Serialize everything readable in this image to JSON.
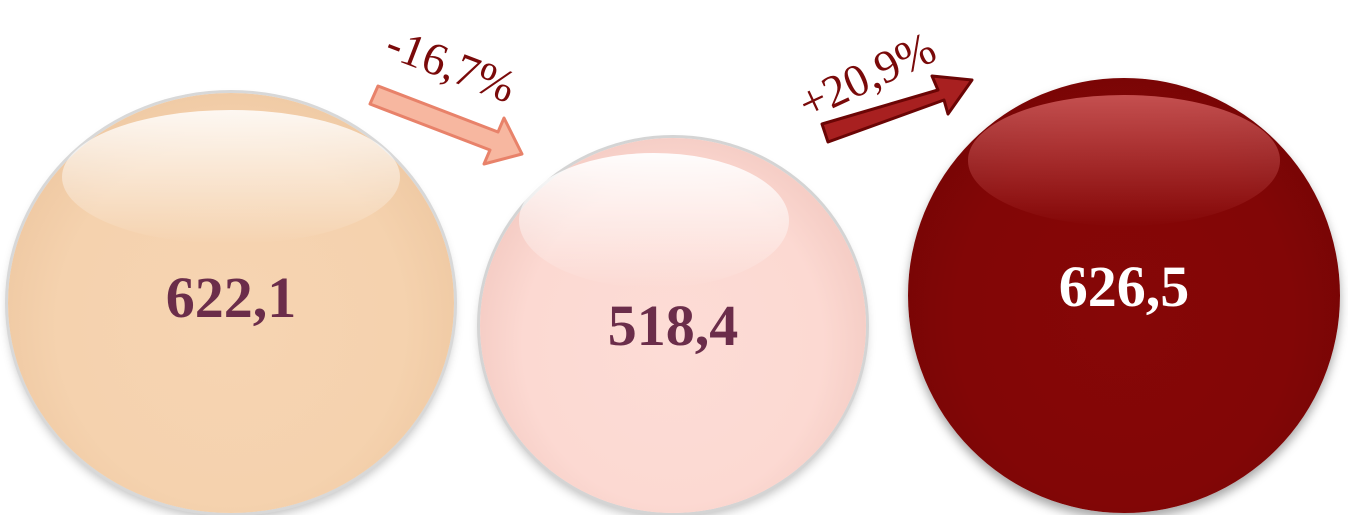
{
  "nodes": [
    {
      "value": "622,1",
      "color": "#f5d2ae",
      "text_color": "#6b2d4a"
    },
    {
      "value": "518,4",
      "color": "#fcd9d2",
      "text_color": "#6b2d4a"
    },
    {
      "value": "626,5",
      "color": "#820606",
      "text_color": "#ffffff"
    }
  ],
  "changes": [
    {
      "label": "-16,7%",
      "direction": "down",
      "arrow_color": "#f7b7a0",
      "arrow_stroke": "#e8826a"
    },
    {
      "label": "+20,9%",
      "direction": "up",
      "arrow_color": "#a82020",
      "arrow_stroke": "#6b0505"
    }
  ],
  "colors": {
    "change_text": "#7a0a0a"
  }
}
